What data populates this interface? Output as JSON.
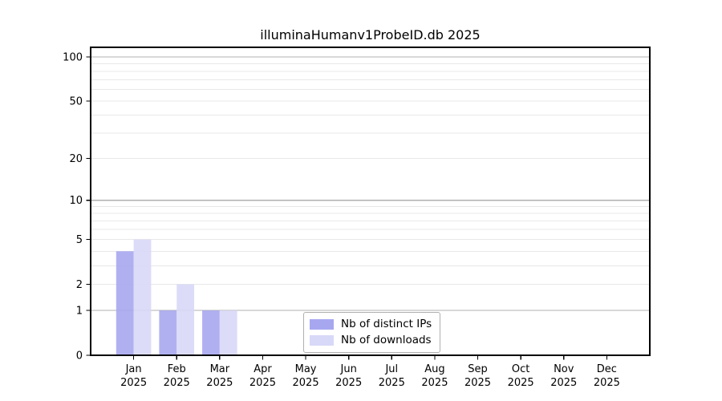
{
  "title": "illuminaHumanv1ProbeID.db 2025",
  "chart_data": {
    "type": "bar",
    "title": "illuminaHumanv1ProbeID.db 2025",
    "xlabel": "",
    "ylabel": "",
    "yscale": "log1p",
    "categories": [
      "Jan",
      "Feb",
      "Mar",
      "Apr",
      "May",
      "Jun",
      "Jul",
      "Aug",
      "Sep",
      "Oct",
      "Nov",
      "Dec"
    ],
    "x_year": "2025",
    "series": [
      {
        "name": "Nb of distinct IPs",
        "color": "#a7a7f0",
        "values": [
          4,
          1,
          1,
          0,
          0,
          0,
          0,
          0,
          0,
          0,
          0,
          0
        ]
      },
      {
        "name": "Nb of downloads",
        "color": "#d8d8f8",
        "values": [
          5,
          2,
          1,
          0,
          0,
          0,
          0,
          0,
          0,
          0,
          0,
          0
        ]
      }
    ],
    "yticks": [
      0,
      1,
      2,
      5,
      10,
      20,
      50,
      100
    ],
    "grid_major": [
      1,
      10,
      100
    ],
    "grid_minor": [
      2,
      3,
      4,
      5,
      6,
      7,
      8,
      9,
      20,
      30,
      40,
      50,
      60,
      70,
      80,
      90
    ],
    "ylim": [
      0,
      117
    ],
    "grid": "on",
    "legend_position": "lower center"
  },
  "colors": {
    "grid_major": "#b0b0b0",
    "grid_minor": "#e8e8e8",
    "axis": "#000000",
    "background": "#ffffff"
  }
}
